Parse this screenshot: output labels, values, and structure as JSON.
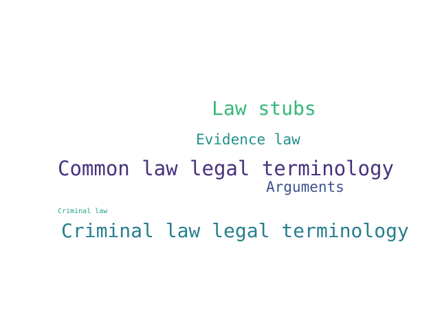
{
  "word_cloud": {
    "words": [
      {
        "text": "Law stubs",
        "color": "#35b779"
      },
      {
        "text": "Evidence law",
        "color": "#21918c"
      },
      {
        "text": "Common law legal terminology",
        "color": "#46327e"
      },
      {
        "text": "Arguments",
        "color": "#3b528b"
      },
      {
        "text": "Criminal law",
        "color": "#1fa187"
      },
      {
        "text": "Criminal law legal terminology",
        "color": "#277f8e"
      }
    ]
  }
}
